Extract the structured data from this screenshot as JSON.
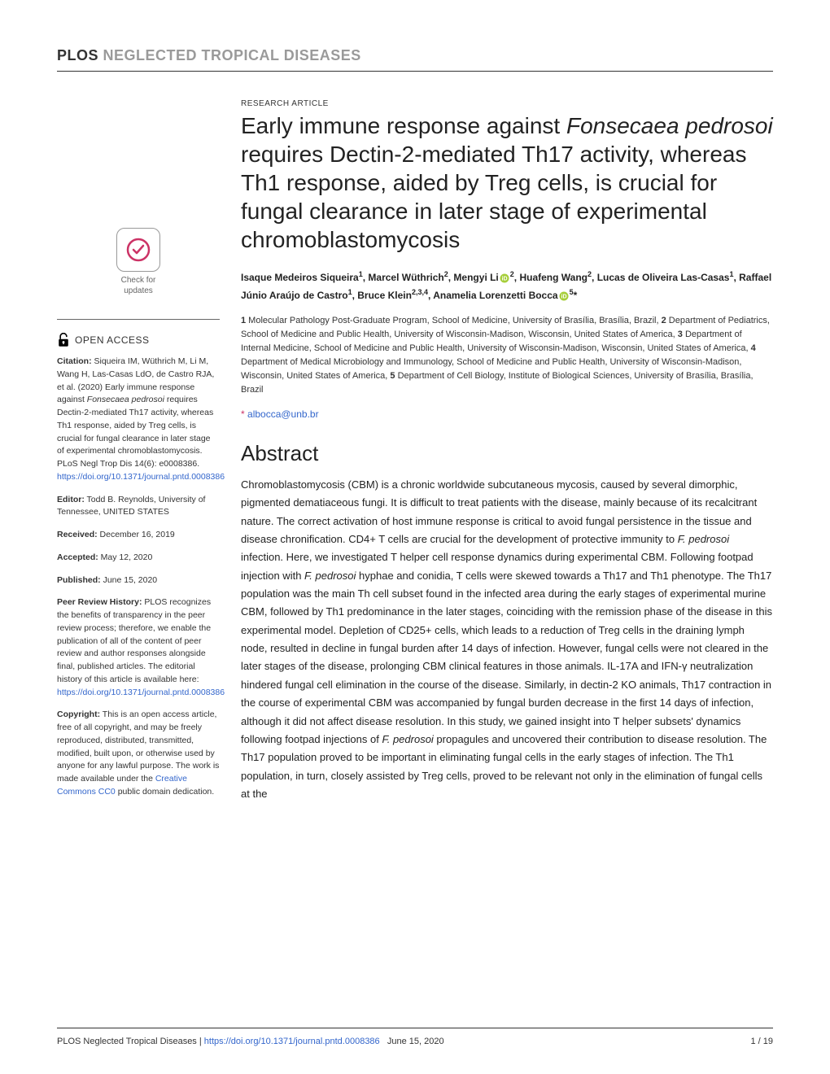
{
  "journal": {
    "plos": "PLOS",
    "ntd": "NEGLECTED TROPICAL DISEASES"
  },
  "article_type": "RESEARCH ARTICLE",
  "title_pre": "Early immune response against ",
  "title_italic": "Fonsecaea pedrosoi",
  "title_post": " requires Dectin-2-mediated Th17 activity, whereas Th1 response, aided by Treg cells, is crucial for fungal clearance in later stage of experimental chromoblastomycosis",
  "authors_html": "Isaque Medeiros Siqueira<sup>1</sup>, Marcel Wüthrich<sup>2</sup>, Mengyi Li<svg class='orcid-icon' viewBox='0 0 24 24'><circle cx='12' cy='12' r='11' fill='#a6ce39'/><text x='12' y='17' text-anchor='middle' font-size='14' fill='#fff' font-family='Arial' font-weight='bold'>iD</text></svg><sup>2</sup>, Huafeng Wang<sup>2</sup>, Lucas de Oliveira Las-Casas<sup>1</sup>, Raffael Júnio Araújo de Castro<sup>1</sup>, Bruce Klein<sup>2,3,4</sup>, Anamelia Lorenzetti Bocca<svg class='orcid-icon' viewBox='0 0 24 24'><circle cx='12' cy='12' r='11' fill='#a6ce39'/><text x='12' y='17' text-anchor='middle' font-size='14' fill='#fff' font-family='Arial' font-weight='bold'>iD</text></svg><sup>5</sup>*",
  "affiliations": "<span class='num'>1</span> Molecular Pathology Post-Graduate Program, School of Medicine, University of Brasília, Brasília, Brazil, <span class='num'>2</span> Department of Pediatrics, School of Medicine and Public Health, University of Wisconsin-Madison, Wisconsin, United States of America, <span class='num'>3</span> Department of Internal Medicine, School of Medicine and Public Health, University of Wisconsin-Madison, Wisconsin, United States of America, <span class='num'>4</span> Department of Medical Microbiology and Immunology, School of Medicine and Public Health, University of Wisconsin-Madison, Wisconsin, United States of America, <span class='num'>5</span> Department of Cell Biology, Institute of Biological Sciences, University of Brasília, Brasília, Brazil",
  "correspondence_email": "albocca@unb.br",
  "abstract_heading": "Abstract",
  "abstract_body": "Chromoblastomycosis (CBM) is a chronic worldwide subcutaneous mycosis, caused by several dimorphic, pigmented dematiaceous fungi. It is difficult to treat patients with the disease, mainly because of its recalcitrant nature. The correct activation of host immune response is critical to avoid fungal persistence in the tissue and disease chronification. CD4+ T cells are crucial for the development of protective immunity to <span class='italic'>F. pedrosoi</span> infection. Here, we investigated T helper cell response dynamics during experimental CBM. Following footpad injection with <span class='italic'>F. pedrosoi</span> hyphae and conidia, T cells were skewed towards a Th17 and Th1 phenotype. The Th17 population was the main Th cell subset found in the infected area during the early stages of experimental murine CBM, followed by Th1 predominance in the later stages, coinciding with the remission phase of the disease in this experimental model. Depletion of CD25+ cells, which leads to a reduction of Treg cells in the draining lymph node, resulted in decline in fungal burden after 14 days of infection. However, fungal cells were not cleared in the later stages of the disease, prolonging CBM clinical features in those animals. IL-17A and IFN-γ neutralization hindered fungal cell elimination in the course of the disease. Similarly, in dectin-2 KO animals, Th17 contraction in the course of experimental CBM was accompanied by fungal burden decrease in the first 14 days of infection, although it did not affect disease resolution. In this study, we gained insight into T helper subsets' dynamics following footpad injections of <span class='italic'>F. pedrosoi</span> propagules and uncovered their contribution to disease resolution. The Th17 population proved to be important in eliminating fungal cells in the early stages of infection. The Th1 population, in turn, closely assisted by Treg cells, proved to be relevant not only in the elimination of fungal cells at the",
  "check_updates": {
    "line1": "Check for",
    "line2": "updates"
  },
  "open_access_label": "OPEN ACCESS",
  "citation": {
    "label": "Citation:",
    "text": " Siqueira IM, Wüthrich M, Li M, Wang H, Las-Casas LdO, de Castro RJA, et al. (2020) Early immune response against <span style='font-style:italic'>Fonsecaea pedrosoi</span> requires Dectin-2-mediated Th17 activity, whereas Th1 response, aided by Treg cells, is crucial for fungal clearance in later stage of experimental chromoblastomycosis. PLoS Negl Trop Dis 14(6): e0008386. ",
    "link": "https://doi.org/10.1371/journal.pntd.0008386"
  },
  "editor": {
    "label": "Editor:",
    "text": " Todd B. Reynolds, University of Tennessee, UNITED STATES"
  },
  "received": {
    "label": "Received:",
    "text": " December 16, 2019"
  },
  "accepted": {
    "label": "Accepted:",
    "text": " May 12, 2020"
  },
  "published": {
    "label": "Published:",
    "text": " June 15, 2020"
  },
  "peer_review": {
    "label": "Peer Review History:",
    "text": " PLOS recognizes the benefits of transparency in the peer review process; therefore, we enable the publication of all of the content of peer review and author responses alongside final, published articles. The editorial history of this article is available here: ",
    "link": "https://doi.org/10.1371/journal.pntd.0008386"
  },
  "copyright": {
    "label": "Copyright:",
    "text": " This is an open access article, free of all copyright, and may be freely reproduced, distributed, transmitted, modified, built upon, or otherwise used by anyone for any lawful purpose. The work is made available under the ",
    "link_text": "Creative Commons CC0",
    "tail": " public domain dedication."
  },
  "footer": {
    "journal": "PLOS Neglected Tropical Diseases | ",
    "link": "https://doi.org/10.1371/journal.pntd.0008386",
    "date": "June 15, 2020",
    "page": "1 / 19"
  },
  "colors": {
    "link": "#3366cc",
    "accent": "#cc3366",
    "orcid": "#a6ce39"
  }
}
